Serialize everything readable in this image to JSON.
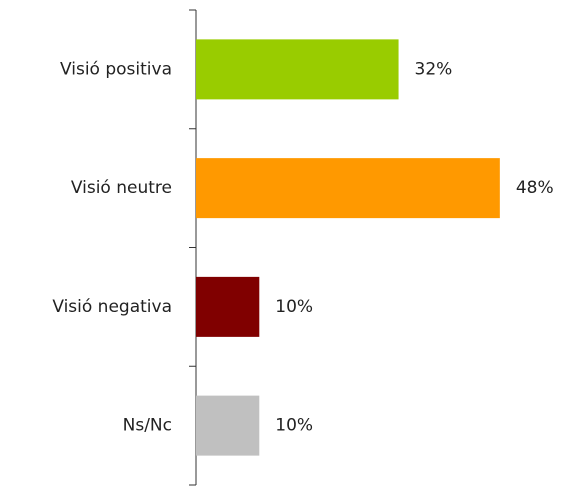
{
  "chart_data": {
    "type": "bar",
    "orientation": "horizontal",
    "categories": [
      "Visió positiva",
      "Visió neutre",
      "Visió negativa",
      "Ns/Nc"
    ],
    "values": [
      32,
      48,
      10,
      10
    ],
    "value_labels": [
      "32%",
      "48%",
      "10%",
      "10%"
    ],
    "colors": [
      "#99cc00",
      "#ff9900",
      "#800000",
      "#c0c0c0"
    ]
  }
}
